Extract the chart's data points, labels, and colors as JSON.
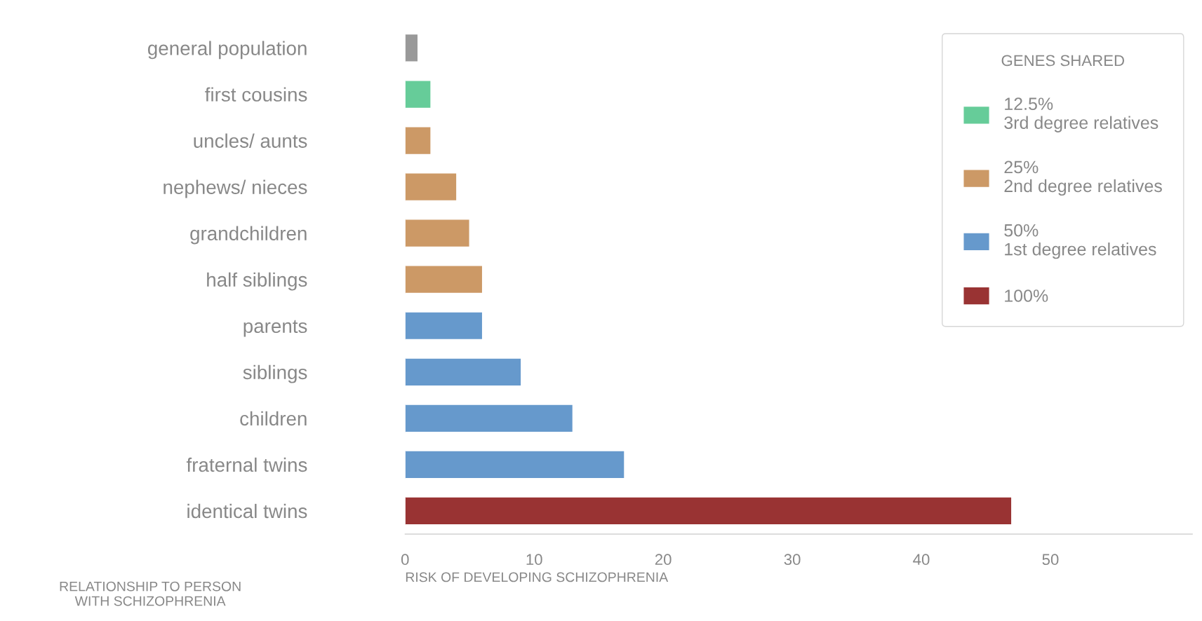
{
  "chart_data": {
    "type": "bar",
    "orientation": "horizontal",
    "categories": [
      "general population",
      "first cousins",
      "uncles/ aunts",
      "nephews/ nieces",
      "grandchildren",
      "half siblings",
      "parents",
      "siblings",
      "children",
      "fraternal twins",
      "identical twins"
    ],
    "series": [
      {
        "color": "#999999",
        "values": [
          1,
          null,
          null,
          null,
          null,
          null,
          null,
          null,
          null,
          null,
          null
        ]
      },
      {
        "name": "12.5%\n3rd degree relatives",
        "color": "#66cc99",
        "values": [
          null,
          2,
          null,
          null,
          null,
          null,
          null,
          null,
          null,
          null,
          null
        ]
      },
      {
        "name": "25%\n2nd degree relatives",
        "color": "#cc9966",
        "values": [
          null,
          null,
          2,
          4,
          5,
          6,
          null,
          null,
          null,
          null,
          null
        ]
      },
      {
        "name": "50%\n1st degree relatives",
        "color": "#6699cc",
        "values": [
          null,
          null,
          null,
          null,
          null,
          null,
          6,
          9,
          13,
          17,
          null
        ]
      },
      {
        "name": "100%",
        "color": "#993333",
        "values": [
          null,
          null,
          null,
          null,
          null,
          null,
          null,
          null,
          null,
          null,
          47
        ]
      }
    ],
    "xlim": [
      0,
      61
    ],
    "xticks": [
      0,
      10,
      20,
      30,
      40,
      50
    ],
    "xlabel": "RISK OF DEVELOPING SCHIZOPHRENIA",
    "ylabel": "RELATIONSHIP TO PERSON\nWITH SCHIZOPHRENIA",
    "legend_title": "GENES SHARED",
    "legend": "top right",
    "grid": false
  }
}
